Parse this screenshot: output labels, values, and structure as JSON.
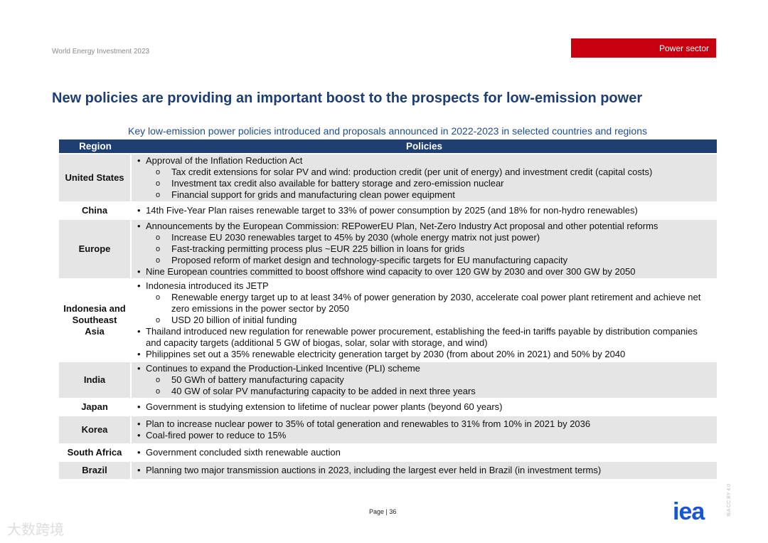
{
  "header": {
    "report": "World Energy Investment 2023",
    "section": "Power sector"
  },
  "title": "New policies are providing an important boost to the prospects for low-emission power",
  "table": {
    "caption": "Key low-emission power policies introduced and proposals announced in 2022-2023 in selected countries and regions",
    "columns": [
      "Region",
      "Policies"
    ],
    "rows": [
      {
        "region": "United States",
        "items": [
          {
            "level": 1,
            "text": "Approval of the Inflation Reduction Act"
          },
          {
            "level": 2,
            "text": "Tax credit extensions for solar PV and wind: production credit (per unit of energy) and investment credit (capital costs)"
          },
          {
            "level": 2,
            "text": "Investment tax credit also available for battery storage and zero-emission nuclear"
          },
          {
            "level": 2,
            "text": "Financial support for grids and manufacturing clean power equipment"
          }
        ]
      },
      {
        "region": "China",
        "items": [
          {
            "level": 1,
            "text": "14th Five-Year Plan raises renewable target to 33% of power consumption by 2025 (and 18% for non-hydro renewables)"
          }
        ]
      },
      {
        "region": "Europe",
        "items": [
          {
            "level": 1,
            "text": "Announcements by the European Commission: REPowerEU Plan, Net-Zero Industry Act proposal and other potential reforms"
          },
          {
            "level": 2,
            "text": "Increase EU 2030 renewables target to 45% by 2030 (whole energy matrix not just power)"
          },
          {
            "level": 2,
            "text": "Fast-tracking permitting process plus ~EUR 225 billion in loans for grids"
          },
          {
            "level": 2,
            "text": "Proposed reform of market design and technology-specific targets for EU manufacturing capacity"
          },
          {
            "level": 1,
            "text": "Nine European countries committed to boost offshore wind capacity to over 120 GW by 2030 and over 300 GW by 2050"
          }
        ]
      },
      {
        "region": "Indonesia and Southeast Asia",
        "items": [
          {
            "level": 1,
            "text": "Indonesia introduced its JETP"
          },
          {
            "level": 2,
            "text": "Renewable energy target up to at least 34% of power generation by 2030, accelerate coal power plant retirement and achieve net zero emissions in the power sector by 2050"
          },
          {
            "level": 2,
            "text": "USD 20 billion of initial funding"
          },
          {
            "level": 1,
            "text": "Thailand introduced new regulation for renewable power procurement, establishing the feed-in tariffs payable by distribution companies and capacity targets (additional 5 GW of biogas, solar, solar with storage, and wind)"
          },
          {
            "level": 1,
            "text": "Philippines set out a 35% renewable electricity generation target by 2030 (from about 20% in 2021) and 50% by 2040"
          }
        ]
      },
      {
        "region": "India",
        "items": [
          {
            "level": 1,
            "text": "Continues to expand the Production-Linked Incentive (PLI) scheme"
          },
          {
            "level": 2,
            "text": "50 GWh of battery manufacturing capacity"
          },
          {
            "level": 2,
            "text": "40 GW of solar PV manufacturing capacity to be added in next three years"
          }
        ]
      },
      {
        "region": "Japan",
        "items": [
          {
            "level": 1,
            "text": "Government is studying extension to lifetime of nuclear power plants (beyond 60 years)"
          }
        ]
      },
      {
        "region": "Korea",
        "items": [
          {
            "level": 1,
            "text": "Plan to increase nuclear power to 35% of total generation and renewables to 31% from 10% in 2021 by 2036"
          },
          {
            "level": 1,
            "text": "Coal-fired power to reduce to 15%"
          }
        ]
      },
      {
        "region": "South Africa",
        "items": [
          {
            "level": 1,
            "text": "Government concluded sixth renewable auction"
          }
        ]
      },
      {
        "region": "Brazil",
        "items": [
          {
            "level": 1,
            "text": "Planning two major transmission auctions in 2023, including the largest ever held in Brazil (in investment terms)"
          }
        ]
      }
    ]
  },
  "footer": {
    "page": "Page | 36",
    "logo": "iea",
    "license": "IEA CC BY 4.0",
    "watermark": "大数跨境"
  },
  "colors": {
    "header_bg": "#1f3f73",
    "badge": "#c8000f",
    "title": "#1f3e73",
    "row_shade": "#e5e5e5",
    "logo": "#1a55d6"
  }
}
